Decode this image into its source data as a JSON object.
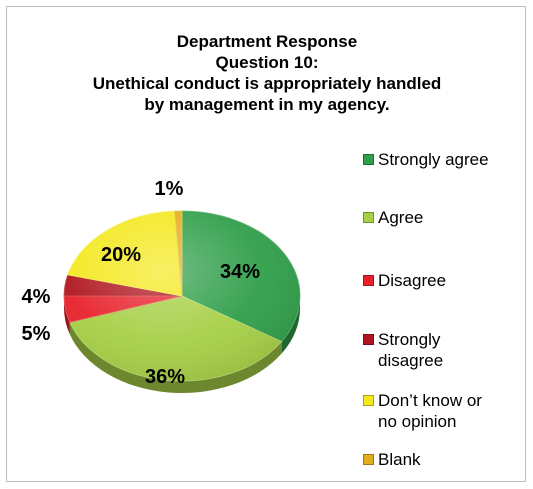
{
  "chart_data": {
    "type": "pie",
    "title_lines": [
      "Department Response",
      "Question 10:",
      "Unethical conduct is appropriately handled",
      "by management in my agency."
    ],
    "slices": [
      {
        "label": "Strongly agree",
        "value": 34,
        "value_label": "34%",
        "color": "#2e9e48"
      },
      {
        "label": "Agree",
        "value": 36,
        "value_label": "36%",
        "color": "#a6cf45"
      },
      {
        "label": "Disagree",
        "value": 5,
        "value_label": "5%",
        "color": "#e8202a"
      },
      {
        "label": "Strongly disagree",
        "value": 4,
        "value_label": "4%",
        "color": "#b0141c"
      },
      {
        "label": "Don’t know or no opinion",
        "value": 20,
        "value_label": "20%",
        "color": "#f4e81c"
      },
      {
        "label": "Blank",
        "value": 1,
        "value_label": "1%",
        "color": "#e2ad1a"
      }
    ],
    "legend_lines": [
      [
        "Strongly agree"
      ],
      [
        "Agree"
      ],
      [
        "Disagree"
      ],
      [
        "Strongly",
        "disagree"
      ],
      [
        "Don’t know or",
        "no opinion"
      ],
      [
        "Blank"
      ]
    ],
    "legend_position": "right"
  }
}
